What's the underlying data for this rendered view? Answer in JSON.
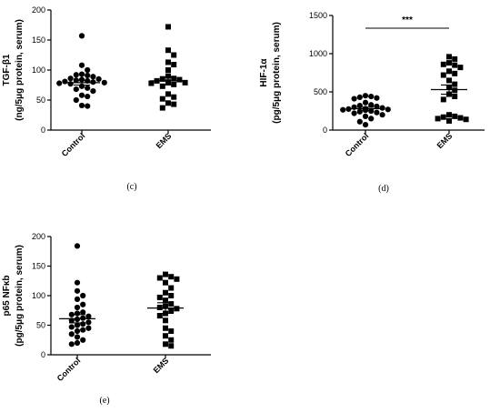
{
  "chart_data": [
    {
      "panel": "(c)",
      "type": "scatter",
      "ylabel_lines": [
        "TGF-β1",
        "(ng/5μg protein, serum)"
      ],
      "ylim": [
        0,
        200
      ],
      "yticks": [
        0,
        50,
        100,
        150,
        200
      ],
      "categories": [
        "Control",
        "EMS"
      ],
      "series": [
        {
          "category": "Control",
          "marker": "circle",
          "values": [
            157,
            108,
            100,
            93,
            92,
            91,
            89,
            86,
            85,
            84,
            83,
            82,
            81,
            80,
            79,
            78,
            77,
            73,
            70,
            68,
            65,
            58,
            56,
            50,
            41,
            40
          ],
          "mean": 79,
          "sem": 4
        },
        {
          "category": "EMS",
          "marker": "square",
          "values": [
            172,
            133,
            125,
            113,
            109,
            100,
            90,
            86,
            85,
            84,
            82,
            80,
            79,
            78,
            76,
            73,
            60,
            55,
            52,
            45,
            43,
            37
          ],
          "mean": 82,
          "sem": 7
        }
      ],
      "significance": null
    },
    {
      "panel": "(d)",
      "type": "scatter",
      "ylabel_lines": [
        "HIF-1α",
        "(pg/5μg protein, serum)"
      ],
      "ylim": [
        0,
        1500
      ],
      "yticks": [
        0,
        500,
        1000,
        1500
      ],
      "categories": [
        "Control",
        "EMS"
      ],
      "series": [
        {
          "category": "Control",
          "marker": "circle",
          "values": [
            450,
            440,
            430,
            420,
            410,
            360,
            330,
            320,
            310,
            300,
            290,
            280,
            275,
            270,
            265,
            260,
            250,
            240,
            230,
            220,
            200,
            180,
            150,
            110,
            70
          ],
          "mean": 280,
          "sem": 20
        },
        {
          "category": "EMS",
          "marker": "square",
          "values": [
            960,
            930,
            880,
            860,
            850,
            820,
            770,
            740,
            720,
            650,
            600,
            560,
            520,
            470,
            440,
            400,
            200,
            180,
            170,
            160,
            150,
            140,
            120
          ],
          "mean": 530,
          "sem": 60
        }
      ],
      "significance": "***"
    },
    {
      "panel": "(e)",
      "type": "scatter",
      "ylabel_lines": [
        "p65 NFκb",
        "(pg/5μg protein, serum)"
      ],
      "ylim": [
        0,
        200
      ],
      "yticks": [
        0,
        50,
        100,
        150,
        200
      ],
      "categories": [
        "Control",
        "EMS"
      ],
      "series": [
        {
          "category": "Control",
          "marker": "circle",
          "values": [
            184,
            122,
            108,
            100,
            94,
            85,
            80,
            72,
            70,
            68,
            65,
            62,
            60,
            58,
            55,
            52,
            50,
            47,
            45,
            42,
            40,
            35,
            30,
            25,
            20,
            18
          ],
          "mean": 61,
          "sem": 7
        },
        {
          "category": "EMS",
          "marker": "square",
          "values": [
            136,
            132,
            130,
            128,
            122,
            113,
            105,
            100,
            97,
            92,
            86,
            82,
            80,
            78,
            75,
            70,
            66,
            58,
            45,
            40,
            32,
            25,
            18,
            15
          ],
          "mean": 79,
          "sem": 9
        }
      ],
      "significance": null
    }
  ]
}
